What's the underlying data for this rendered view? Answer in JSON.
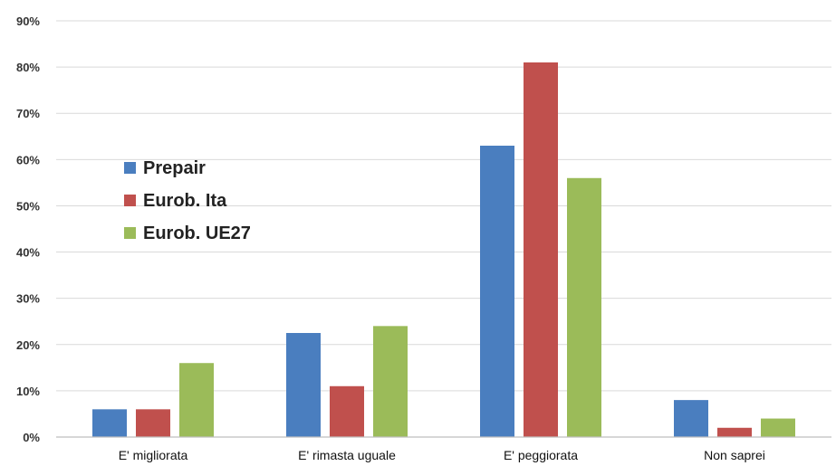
{
  "chart_data": {
    "type": "bar",
    "categories": [
      "E' migliorata",
      "E' rimasta uguale",
      "E' peggiorata",
      "Non saprei"
    ],
    "series": [
      {
        "name": "Prepair",
        "color": "#4a7ebf",
        "values": [
          6,
          22.5,
          63,
          8
        ]
      },
      {
        "name": "Eurob. Ita",
        "color": "#c0504d",
        "values": [
          6,
          11,
          81,
          2
        ]
      },
      {
        "name": "Eurob. UE27",
        "color": "#9bbb59",
        "values": [
          16,
          24,
          56,
          4
        ]
      }
    ],
    "ylim": [
      0,
      90
    ],
    "yticks": [
      "0%",
      "10%",
      "20%",
      "30%",
      "40%",
      "50%",
      "60%",
      "70%",
      "80%",
      "90%"
    ],
    "grid": true,
    "legend_position": "left-middle",
    "colors": {
      "grid": "#d9d9d9",
      "axis": "#bfbfbf"
    }
  }
}
